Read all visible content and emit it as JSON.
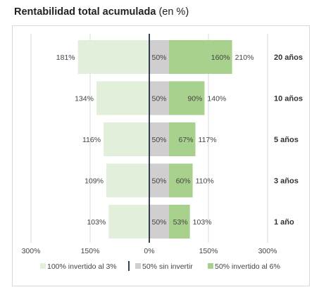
{
  "title": {
    "bold": "Rentabilidad total acumulada",
    "rest": " (en %)"
  },
  "colors": {
    "left": "#e2efda",
    "middle": "#d0cece",
    "right": "#a9d18e",
    "zero_line": "#1f2a44",
    "grid": "#d9d9d9"
  },
  "chart_data": {
    "type": "bar",
    "orientation": "horizontal",
    "title": "Rentabilidad total acumulada (en %)",
    "categories": [
      "20 años",
      "10 años",
      "5 años",
      "3 años",
      "1 año"
    ],
    "series": [
      {
        "name": "100% invertido al 3%",
        "direction": "left",
        "values": [
          181,
          134,
          116,
          109,
          103
        ],
        "labels": [
          "181%",
          "134%",
          "116%",
          "109%",
          "103%"
        ]
      },
      {
        "name": "50% sin invertir",
        "values": [
          50,
          50,
          50,
          50,
          50
        ],
        "labels": [
          "50%",
          "50%",
          "50%",
          "50%",
          "50%"
        ]
      },
      {
        "name": "50% invertido al 6%",
        "values": [
          160,
          90,
          67,
          60,
          53
        ],
        "labels": [
          "160%",
          "90%",
          "67%",
          "60%",
          "53%"
        ]
      }
    ],
    "totals_right": [
      "210%",
      "140%",
      "117%",
      "110%",
      "103%"
    ],
    "x_ticks": [
      {
        "value": -300,
        "label": "300%"
      },
      {
        "value": -150,
        "label": "150%"
      },
      {
        "value": 0,
        "label": "0%"
      },
      {
        "value": 150,
        "label": "150%"
      },
      {
        "value": 300,
        "label": "300%"
      }
    ],
    "xlim": [
      -300,
      300
    ],
    "grid": true,
    "legend_position": "bottom"
  }
}
